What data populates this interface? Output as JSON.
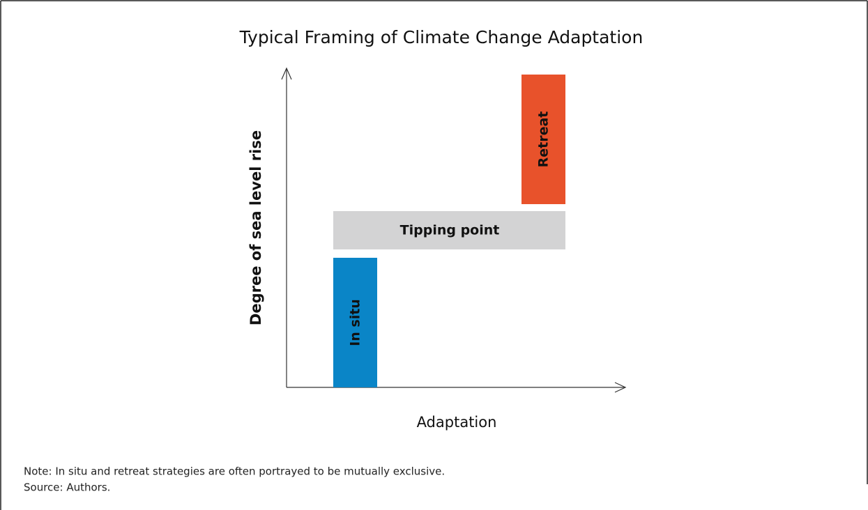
{
  "title": "Typical Framing of Climate Change Adaptation",
  "y_axis_label": "Degree of sea level rise",
  "x_axis_label": "Adaptation",
  "boxes": [
    {
      "label": "In situ",
      "color": "#0a85c7"
    },
    {
      "label": "Tipping point",
      "color": "#d3d3d4"
    },
    {
      "label": "Retreat",
      "color": "#e8522b"
    }
  ],
  "note": "Note: In situ and retreat strategies are often portrayed to be mutually exclusive.",
  "source": "Source: Authors."
}
